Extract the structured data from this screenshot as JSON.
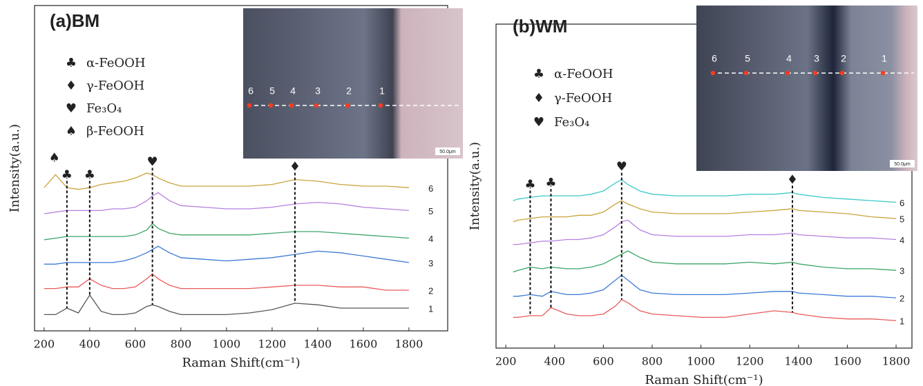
{
  "chart_data": [
    {
      "type": "line",
      "title": "(a)BM",
      "xlabel": "Raman Shift(cm⁻¹)",
      "ylabel": "Intensity(a.u.)",
      "xlim": [
        158,
        1970
      ],
      "ylim": [
        0,
        100
      ],
      "xticks": [
        200,
        400,
        600,
        800,
        1000,
        1200,
        1400,
        1600,
        1800
      ],
      "legend": [
        {
          "symbol": "♣",
          "label": "α-FeOOH"
        },
        {
          "symbol": "♦",
          "label": "γ-FeOOH"
        },
        {
          "symbol": "♥",
          "label": "Fe₃O₄"
        },
        {
          "symbol": "♠",
          "label": "β-FeOOH"
        }
      ],
      "annotations": [
        {
          "symbol": "♠",
          "x": 245
        },
        {
          "symbol": "♣",
          "x": 300
        },
        {
          "symbol": "♣",
          "x": 400
        },
        {
          "symbol": "♥",
          "x": 675
        },
        {
          "symbol": "♦",
          "x": 1300
        }
      ],
      "x": [
        200,
        250,
        300,
        350,
        400,
        450,
        500,
        550,
        600,
        650,
        675,
        700,
        750,
        800,
        900,
        1000,
        1100,
        1200,
        1300,
        1400,
        1500,
        1600,
        1700,
        1800
      ],
      "series": [
        {
          "name": "1",
          "color": "#555555",
          "values": [
            5,
            5,
            7,
            5.5,
            11,
            6,
            5,
            5,
            5.5,
            7.5,
            8,
            7.5,
            6,
            5,
            5,
            5,
            5.5,
            6.5,
            8.5,
            8,
            7,
            7,
            7,
            7
          ]
        },
        {
          "name": "2",
          "color": "#e8595a",
          "values": [
            13,
            13,
            13.5,
            13.5,
            16,
            14,
            13,
            13,
            13.5,
            16,
            17.5,
            16,
            14,
            13,
            13,
            13,
            13,
            13.5,
            14,
            14,
            13.5,
            13.5,
            12.5,
            12.5
          ]
        },
        {
          "name": "3",
          "color": "#3a78d4",
          "values": [
            20.5,
            20.5,
            21,
            21,
            21,
            21,
            21,
            21.5,
            22.5,
            24,
            25,
            26,
            24,
            22.5,
            22,
            21.5,
            22,
            22.5,
            23.5,
            24.5,
            24,
            23,
            22,
            21
          ]
        },
        {
          "name": "4",
          "color": "#3aa566",
          "values": [
            28,
            28.5,
            29,
            29,
            29,
            29,
            29,
            29,
            29.5,
            31,
            33,
            31.5,
            30,
            29.5,
            29.5,
            29.5,
            29.5,
            30,
            30.5,
            30.5,
            30,
            29.5,
            29,
            28.5
          ]
        },
        {
          "name": "5",
          "color": "#b77fe0",
          "values": [
            36,
            36.5,
            37,
            37,
            37,
            37,
            37.5,
            37.5,
            38,
            40,
            41.5,
            42.5,
            40,
            38.5,
            38,
            37.5,
            37.5,
            38,
            39,
            39.5,
            39,
            38,
            37.5,
            37
          ]
        },
        {
          "name": "6",
          "color": "#c9a43a",
          "values": [
            44,
            48,
            44,
            43.5,
            44,
            45,
            45.5,
            46,
            47,
            48.5,
            48,
            47,
            45.5,
            44.5,
            44.5,
            44.5,
            44.5,
            45,
            46.5,
            46,
            45,
            44.5,
            44.5,
            44
          ]
        }
      ],
      "image": {
        "points": [
          "6",
          "5",
          "4",
          "3",
          "2",
          "1"
        ],
        "scale": "50.0μm"
      }
    },
    {
      "type": "line",
      "title": "(b)WM",
      "xlabel": "Raman Shift(cm⁻¹)",
      "ylabel": "Intensity(a.u.)",
      "xlim": [
        160,
        1865
      ],
      "ylim": [
        0,
        100
      ],
      "xticks": [
        200,
        400,
        600,
        800,
        1000,
        1200,
        1400,
        1600,
        1800
      ],
      "legend": [
        {
          "symbol": "♣",
          "label": "α-FeOOH"
        },
        {
          "symbol": "♦",
          "label": "γ-FeOOH"
        },
        {
          "symbol": "♥",
          "label": "Fe₃O₄"
        }
      ],
      "annotations": [
        {
          "symbol": "♣",
          "x": 300
        },
        {
          "symbol": "♣",
          "x": 385
        },
        {
          "symbol": "♥",
          "x": 675
        },
        {
          "symbol": "♦",
          "x": 1375
        }
      ],
      "x": [
        230,
        250,
        300,
        350,
        385,
        450,
        500,
        550,
        600,
        650,
        675,
        700,
        750,
        800,
        900,
        1000,
        1100,
        1200,
        1300,
        1375,
        1400,
        1500,
        1600,
        1700,
        1800
      ],
      "series": [
        {
          "name": "1",
          "color": "#e8595a",
          "values": [
            9.5,
            9.5,
            10,
            10,
            12.5,
            10.5,
            10,
            10,
            10.5,
            13,
            15,
            14,
            11.5,
            10.5,
            10,
            9.5,
            9.5,
            10.5,
            11.5,
            11,
            10.5,
            9.5,
            9,
            9,
            8.5
          ]
        },
        {
          "name": "2",
          "color": "#3a78d4",
          "values": [
            16,
            16,
            16.5,
            16,
            17.5,
            16.5,
            16.5,
            17,
            18,
            21,
            22.5,
            21,
            18,
            17,
            16.5,
            16.5,
            16.5,
            17,
            17.5,
            17.5,
            17,
            16.5,
            16,
            16,
            15.5
          ]
        },
        {
          "name": "3",
          "color": "#3aa566",
          "values": [
            23.5,
            24,
            25,
            24.5,
            25,
            24.5,
            24.5,
            25,
            26,
            28,
            29,
            30,
            28,
            26.5,
            26,
            26,
            26,
            26.5,
            26,
            26.5,
            26,
            25,
            24.5,
            24.5,
            24
          ]
        },
        {
          "name": "4",
          "color": "#b77fe0",
          "values": [
            32,
            32,
            32.5,
            33,
            33,
            33.5,
            33.5,
            34,
            35,
            37.5,
            39,
            39.5,
            36.5,
            35,
            34.5,
            34.5,
            34.5,
            35,
            35,
            35.5,
            35,
            34.5,
            34,
            34,
            33.5
          ]
        },
        {
          "name": "5",
          "color": "#c9a43a",
          "values": [
            39,
            39.5,
            40,
            40.5,
            40.5,
            40.5,
            41,
            41,
            42,
            44.5,
            45.5,
            44.5,
            43,
            42,
            41.5,
            41.5,
            41.5,
            42,
            42.5,
            43,
            42.5,
            42,
            41.5,
            40.5,
            40
          ]
        },
        {
          "name": "6",
          "color": "#3cc8c8",
          "values": [
            45.5,
            46,
            46.5,
            47,
            47,
            47,
            47,
            47.5,
            48.5,
            51,
            52,
            50.5,
            48.5,
            47.5,
            47,
            47,
            47,
            47.5,
            47.5,
            48,
            47.5,
            46.5,
            46,
            45.5,
            45
          ]
        }
      ],
      "image": {
        "points": [
          "6",
          "5",
          "4",
          "3",
          "2",
          "1"
        ],
        "scale": "50.0μm"
      }
    }
  ]
}
